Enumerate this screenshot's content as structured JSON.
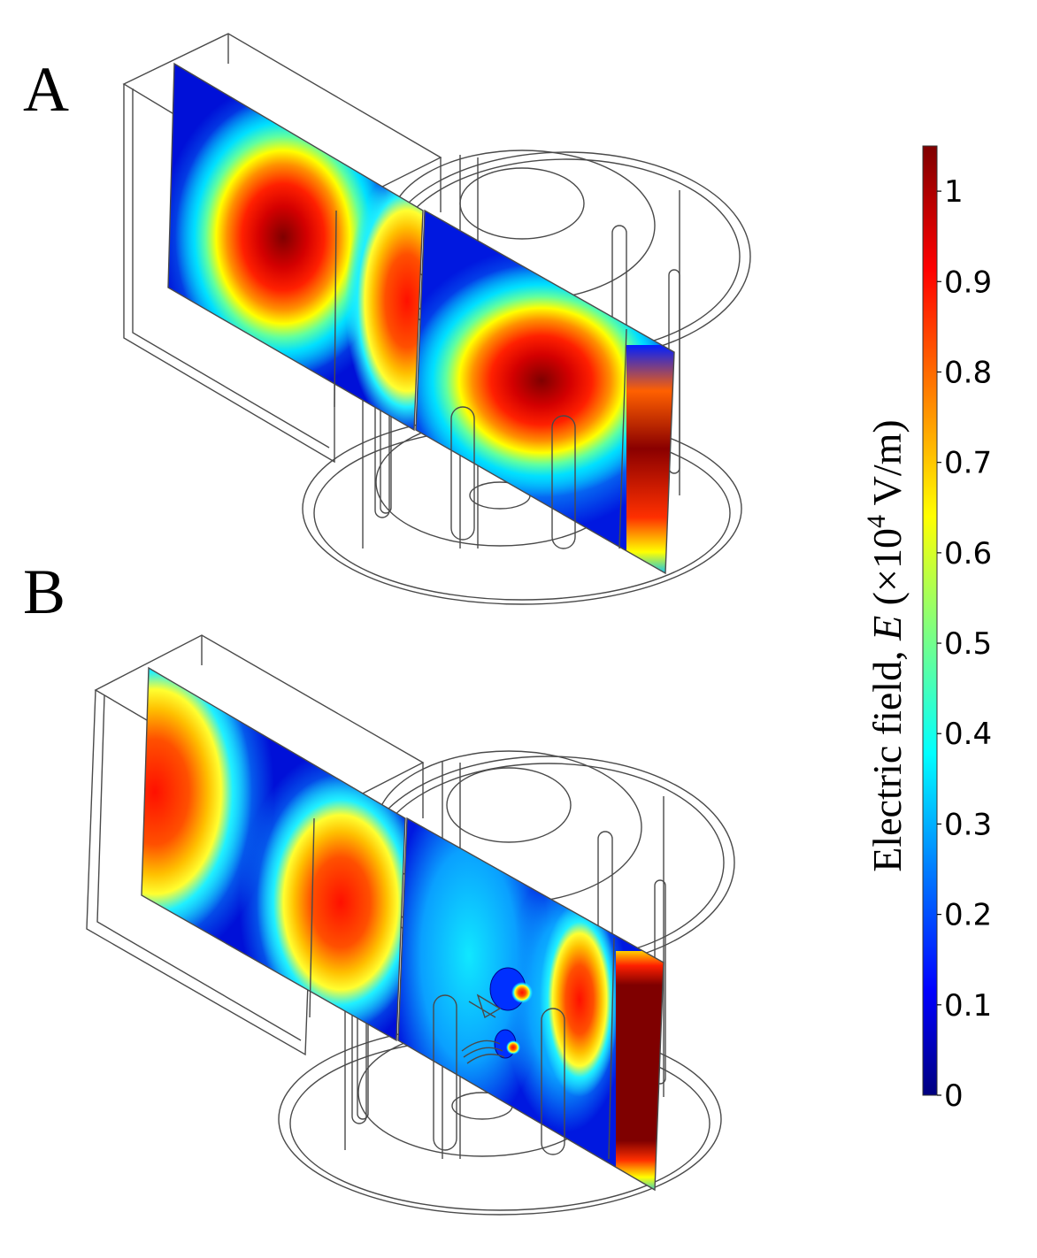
{
  "panels": [
    {
      "label": "A"
    },
    {
      "label": "B"
    }
  ],
  "colorbar": {
    "title_prefix": "Electric field, ",
    "title_var": "E",
    "title_unit_open": " (×10",
    "title_exp": "4",
    "title_unit_close": " V/m)",
    "ticks": [
      "0",
      "0.1",
      "0.2",
      "0.3",
      "0.4",
      "0.5",
      "0.6",
      "0.7",
      "0.8",
      "0.9",
      "1"
    ],
    "range": [
      0,
      1.05
    ],
    "colormap": "jet",
    "colormap_stops": [
      "#00007f",
      "#0000ff",
      "#007fff",
      "#00ffff",
      "#7fff7f",
      "#ffff00",
      "#ff7f00",
      "#ff0000",
      "#7f0000"
    ]
  }
}
